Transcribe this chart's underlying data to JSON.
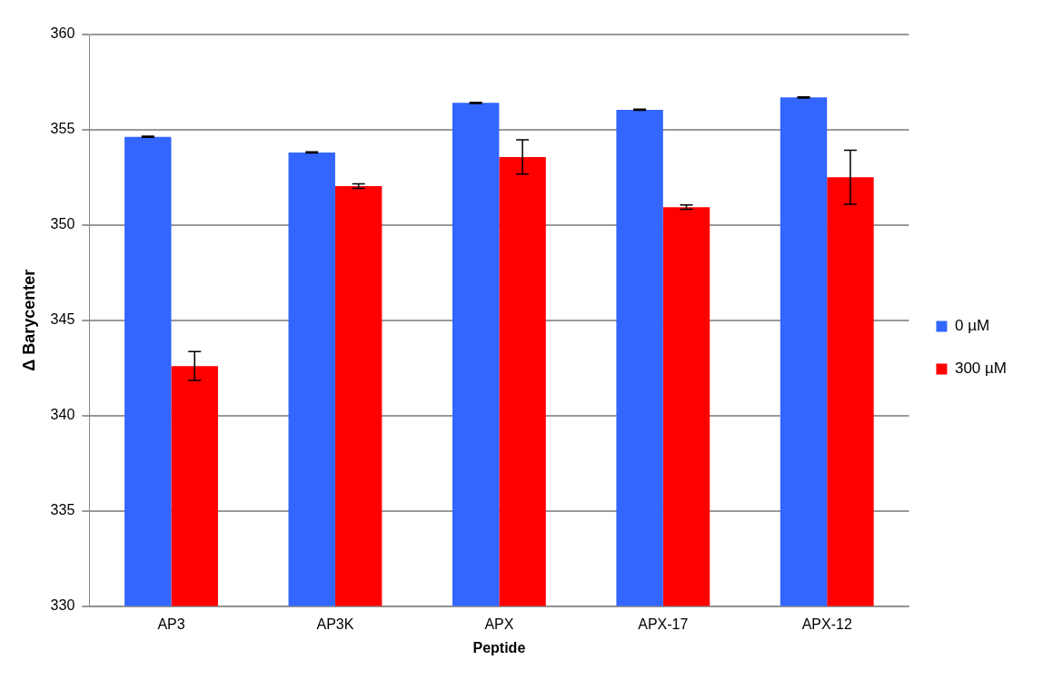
{
  "chart_data": {
    "type": "bar",
    "xlabel": "Peptide",
    "ylabel": "Δ Barycenter",
    "categories": [
      "AP3",
      "AP3K",
      "APX",
      "APX-17",
      "APX-12"
    ],
    "series": [
      {
        "name": "0 µM",
        "color": "#3366ff",
        "values": [
          354.63,
          353.81,
          356.41,
          356.05,
          356.7
        ],
        "errors": [
          0.03,
          0.03,
          0.03,
          0.03,
          0.03
        ]
      },
      {
        "name": "300 µM",
        "color": "#ff0000",
        "values": [
          342.6,
          352.04,
          353.57,
          350.94,
          352.51
        ],
        "errors": [
          0.76,
          0.12,
          0.9,
          0.11,
          1.42
        ]
      }
    ],
    "ylim": [
      330,
      360
    ],
    "yticks": [
      330,
      335,
      340,
      345,
      350,
      355,
      360
    ],
    "grid": "y",
    "legend": "right"
  }
}
